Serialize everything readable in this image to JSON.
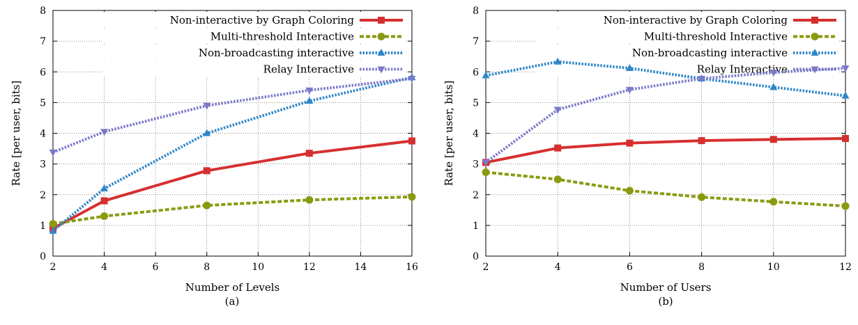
{
  "chart_data": [
    {
      "type": "line",
      "caption": "(a)",
      "xlabel": "Number of Levels",
      "ylabel": "Rate [per user, bits]",
      "x": [
        2,
        4,
        8,
        12,
        16
      ],
      "xlim": [
        2,
        16
      ],
      "ylim": [
        0,
        8
      ],
      "xticks": [
        2,
        4,
        6,
        8,
        10,
        12,
        14,
        16
      ],
      "yticks": [
        0,
        1,
        2,
        3,
        4,
        5,
        6,
        7,
        8
      ],
      "grid": true,
      "legend_position": "top-right",
      "series": [
        {
          "name": "Non-interactive by Graph Coloring",
          "values": [
            0.9,
            1.8,
            2.78,
            3.35,
            3.75
          ],
          "color": "#d62f2f",
          "marker": "square",
          "dash": "solid"
        },
        {
          "name": "Multi-threshold Interactive",
          "values": [
            1.05,
            1.3,
            1.65,
            1.83,
            1.93
          ],
          "color": "#8a9a10",
          "marker": "circle",
          "dash": "dashed"
        },
        {
          "name": "Non-broadcasting interactive",
          "values": [
            0.82,
            2.2,
            4.0,
            5.05,
            5.82
          ],
          "color": "#2f87c8",
          "marker": "triangle-up",
          "dash": "dotted"
        },
        {
          "name": "Relay Interactive",
          "values": [
            3.38,
            4.05,
            4.9,
            5.4,
            5.78
          ],
          "color": "#7b79c8",
          "marker": "triangle-down",
          "dash": "dotted"
        }
      ]
    },
    {
      "type": "line",
      "caption": "(b)",
      "xlabel": "Number of Users",
      "ylabel": "Rate [per user, bits]",
      "x": [
        2,
        4,
        6,
        8,
        10,
        12
      ],
      "xlim": [
        2,
        12
      ],
      "ylim": [
        0,
        8
      ],
      "xticks": [
        2,
        4,
        6,
        8,
        10,
        12
      ],
      "yticks": [
        0,
        1,
        2,
        3,
        4,
        5,
        6,
        7,
        8
      ],
      "grid": true,
      "legend_position": "top-right",
      "series": [
        {
          "name": "Non-interactive by Graph Coloring",
          "values": [
            3.05,
            3.52,
            3.68,
            3.76,
            3.8,
            3.83
          ],
          "color": "#d62f2f",
          "marker": "square",
          "dash": "solid"
        },
        {
          "name": "Multi-threshold Interactive",
          "values": [
            2.73,
            2.5,
            2.13,
            1.92,
            1.77,
            1.63
          ],
          "color": "#8a9a10",
          "marker": "circle",
          "dash": "dashed"
        },
        {
          "name": "Non-broadcasting interactive",
          "values": [
            5.88,
            6.33,
            6.12,
            5.78,
            5.5,
            5.22
          ],
          "color": "#2f87c8",
          "marker": "triangle-up",
          "dash": "dotted"
        },
        {
          "name": "Relay Interactive",
          "values": [
            3.05,
            4.77,
            5.42,
            5.78,
            5.98,
            6.12
          ],
          "color": "#7b79c8",
          "marker": "triangle-down",
          "dash": "dotted"
        }
      ]
    }
  ]
}
